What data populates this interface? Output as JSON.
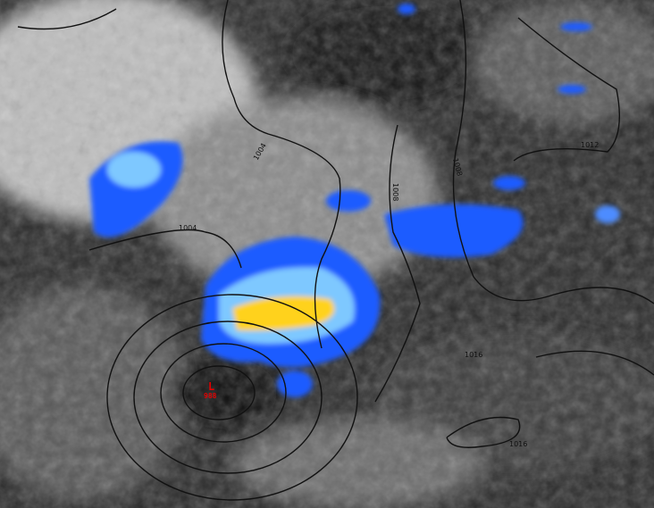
{
  "map": {
    "pressure_system": {
      "type_label": "L",
      "pressure": "988"
    },
    "isobar_labels": [
      "1004",
      "1004",
      "1008",
      "1008",
      "1012",
      "1016",
      "1016"
    ],
    "colors": {
      "low_label": "#e00000",
      "radar_light": "#1e5cff",
      "radar_mid": "#7ec8ff",
      "radar_heavy": "#ffd21e",
      "isobar": "#111111"
    }
  }
}
